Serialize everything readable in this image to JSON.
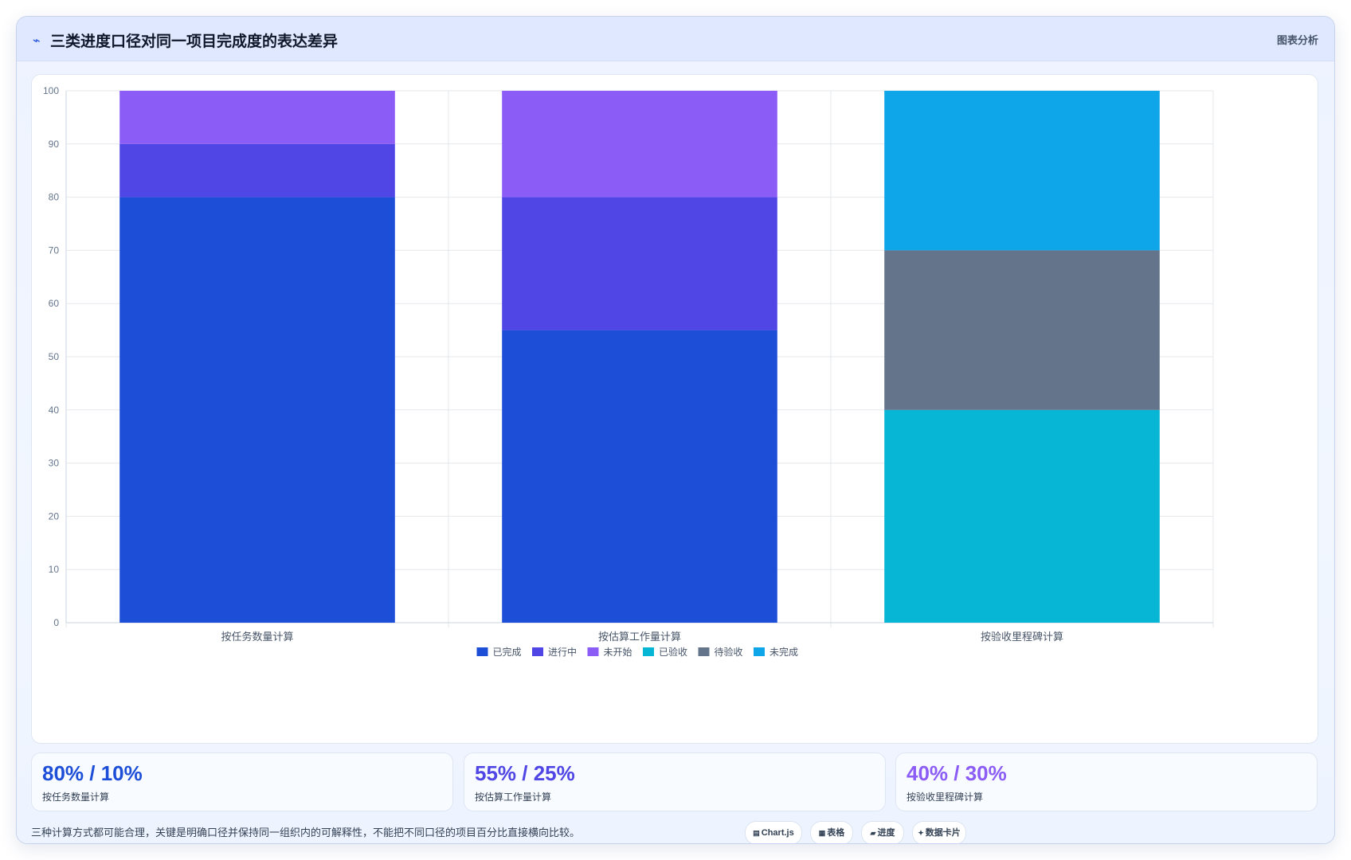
{
  "header": {
    "icon": "chart-icon",
    "title": "三类进度口径对同一项目完成度的表达差异",
    "meta": "图表分析"
  },
  "chart_data": {
    "type": "bar",
    "stacked": true,
    "categories": [
      "按任务数量计算",
      "按估算工作量计算",
      "按验收里程碑计算"
    ],
    "series": [
      {
        "name": "已完成",
        "color": "#1d4ed8",
        "values": [
          80,
          55,
          0
        ]
      },
      {
        "name": "进行中",
        "color": "#4f46e5",
        "values": [
          10,
          25,
          0
        ]
      },
      {
        "name": "未开始",
        "color": "#8b5cf6",
        "values": [
          10,
          20,
          0
        ]
      },
      {
        "name": "已验收",
        "color": "#06b6d4",
        "values": [
          0,
          0,
          40
        ]
      },
      {
        "name": "待验收",
        "color": "#64748b",
        "values": [
          0,
          0,
          30
        ]
      },
      {
        "name": "未完成",
        "color": "#0ea5e9",
        "values": [
          0,
          0,
          30
        ]
      }
    ],
    "ylim": [
      0,
      100
    ],
    "yticks": [
      0,
      10,
      20,
      30,
      40,
      50,
      60,
      70,
      80,
      90,
      100
    ],
    "grid": true,
    "legend": "bottom"
  },
  "stats": [
    {
      "value": "80% / 10%",
      "label": "按任务数量计算",
      "color": "#1d4ed8"
    },
    {
      "value": "55% / 25%",
      "label": "按估算工作量计算",
      "color": "#4f46e5"
    },
    {
      "value": "40% / 30%",
      "label": "按验收里程碑计算",
      "color": "#8b5cf6"
    }
  ],
  "footnote": "三种计算方式都可能合理，关键是明确口径并保持同一组织内的可解释性，不能把不同口径的项目百分比直接横向比较。",
  "chips": [
    {
      "icon": "bar-chart-icon",
      "label": "Chart.js"
    },
    {
      "icon": "table-icon",
      "label": "表格"
    },
    {
      "icon": "progress-icon",
      "label": "进度"
    },
    {
      "icon": "sparkle-icon",
      "label": "数据卡片"
    }
  ]
}
